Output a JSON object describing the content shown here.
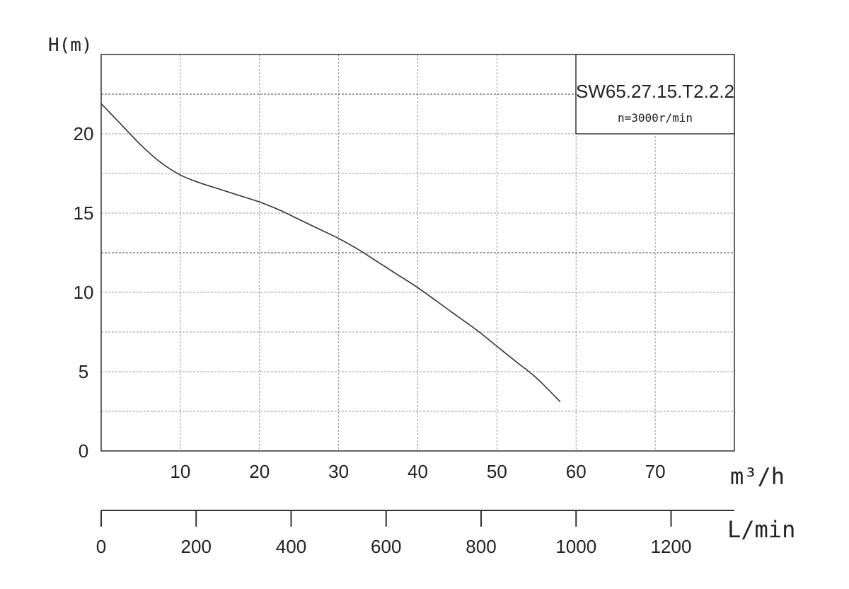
{
  "chart_data": {
    "type": "line",
    "title": "",
    "xlabel": "m³/h",
    "ylabel": "H(m)",
    "xlim": [
      0,
      80
    ],
    "ylim": [
      0,
      25
    ],
    "grid": true,
    "x_ticks": [
      10,
      20,
      30,
      40,
      50,
      60,
      70
    ],
    "y_ticks": [
      0,
      5,
      10,
      15,
      20
    ],
    "secondary_x_axis": {
      "label": "L/min",
      "ticks": [
        0,
        200,
        400,
        600,
        800,
        1000,
        1200
      ]
    },
    "legend": {
      "placement": "top-right",
      "model": "SW65.27.15.T2.2.2",
      "speed": "n=3000r/min"
    },
    "series": [
      {
        "x": [
          0,
          2.5,
          5,
          7.5,
          10,
          12.5,
          15,
          17.5,
          20,
          22.5,
          25,
          27.5,
          30,
          32.5,
          35,
          37.5,
          40,
          42.5,
          45,
          47.5,
          50,
          52.5,
          55,
          58
        ],
        "y": [
          21.9,
          20.6,
          19.3,
          18.2,
          17.4,
          16.9,
          16.5,
          16.1,
          15.7,
          15.2,
          14.6,
          14.0,
          13.4,
          12.7,
          11.9,
          11.1,
          10.3,
          9.4,
          8.5,
          7.6,
          6.6,
          5.6,
          4.6,
          3.1
        ]
      }
    ],
    "colors": {
      "curve": "#333333",
      "axis": "#333333",
      "grid": "#9a9a9a"
    }
  }
}
